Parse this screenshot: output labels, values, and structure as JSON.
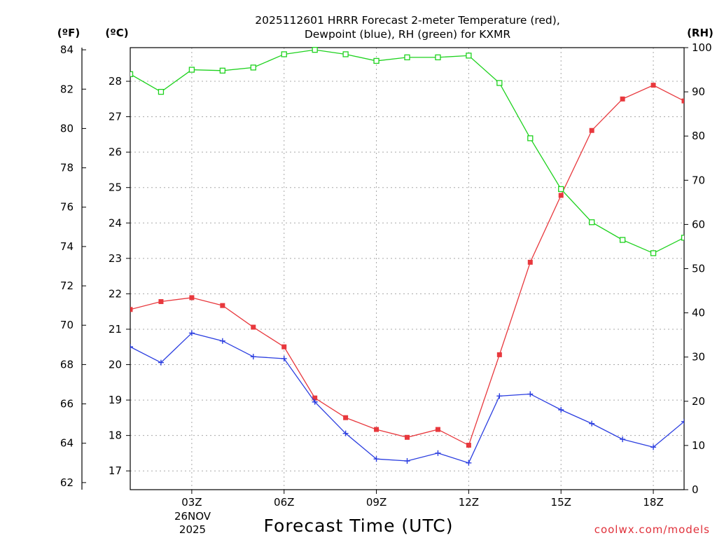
{
  "chart_data": {
    "type": "line",
    "title_lines": [
      "2025112601 HRRR Forecast 2-meter Temperature (red),",
      "Dewpoint (blue), RH (green) for KXMR"
    ],
    "unit_labels": {
      "fahrenheit": "(ºF)",
      "celsius": "(ºC)",
      "rh": "(RH)"
    },
    "xlabel": "Forecast Time (UTC)",
    "date_labels": [
      "26NOV",
      "2025"
    ],
    "credit": "coolwx.com/models",
    "x_hours": [
      1,
      2,
      3,
      4,
      5,
      6,
      7,
      8,
      9,
      10,
      11,
      12,
      13,
      14,
      15,
      16,
      17,
      18,
      19
    ],
    "x_range": [
      1,
      19
    ],
    "x_ticks": [
      {
        "hour": 3,
        "label": "03Z"
      },
      {
        "hour": 6,
        "label": "06Z"
      },
      {
        "hour": 9,
        "label": "09Z"
      },
      {
        "hour": 12,
        "label": "12Z"
      },
      {
        "hour": 15,
        "label": "15Z"
      },
      {
        "hour": 18,
        "label": "18Z"
      }
    ],
    "y_fahrenheit": {
      "range": [
        61.64,
        84.11
      ],
      "ticks": [
        "62",
        "64",
        "66",
        "68",
        "70",
        "72",
        "74",
        "76",
        "78",
        "80",
        "82",
        "84"
      ]
    },
    "y_celsius": {
      "range": [
        16.47,
        28.95
      ],
      "ticks": [
        "17",
        "18",
        "19",
        "20",
        "21",
        "22",
        "23",
        "24",
        "25",
        "26",
        "27",
        "28"
      ]
    },
    "y_rh": {
      "range": [
        0,
        100
      ],
      "ticks": [
        "0",
        "10",
        "20",
        "30",
        "40",
        "50",
        "60",
        "70",
        "80",
        "90",
        "100"
      ]
    },
    "series": [
      {
        "name": "Temperature",
        "axis": "fahrenheit",
        "color": "#e8383d",
        "marker": "filled-square",
        "values": [
          70.8,
          71.2,
          71.4,
          71.0,
          69.9,
          68.9,
          66.3,
          65.3,
          64.7,
          64.3,
          64.7,
          63.9,
          68.5,
          73.2,
          76.6,
          79.9,
          81.5,
          82.2,
          81.4
        ]
      },
      {
        "name": "Dewpoint",
        "axis": "fahrenheit",
        "color": "#2b3ee0",
        "marker": "plus",
        "values": [
          68.9,
          68.1,
          69.6,
          69.2,
          68.4,
          68.3,
          66.1,
          64.5,
          63.2,
          63.1,
          63.5,
          63.0,
          66.4,
          66.5,
          65.7,
          65.0,
          64.2,
          63.8,
          65.1
        ]
      },
      {
        "name": "RH",
        "axis": "rh",
        "color": "#1ed21e",
        "marker": "open-square",
        "values": [
          94.0,
          90.0,
          95.0,
          94.8,
          95.5,
          98.5,
          99.5,
          98.5,
          97.0,
          97.8,
          97.8,
          98.2,
          92.0,
          79.5,
          68.0,
          60.5,
          56.5,
          53.5,
          57.0
        ]
      }
    ]
  }
}
